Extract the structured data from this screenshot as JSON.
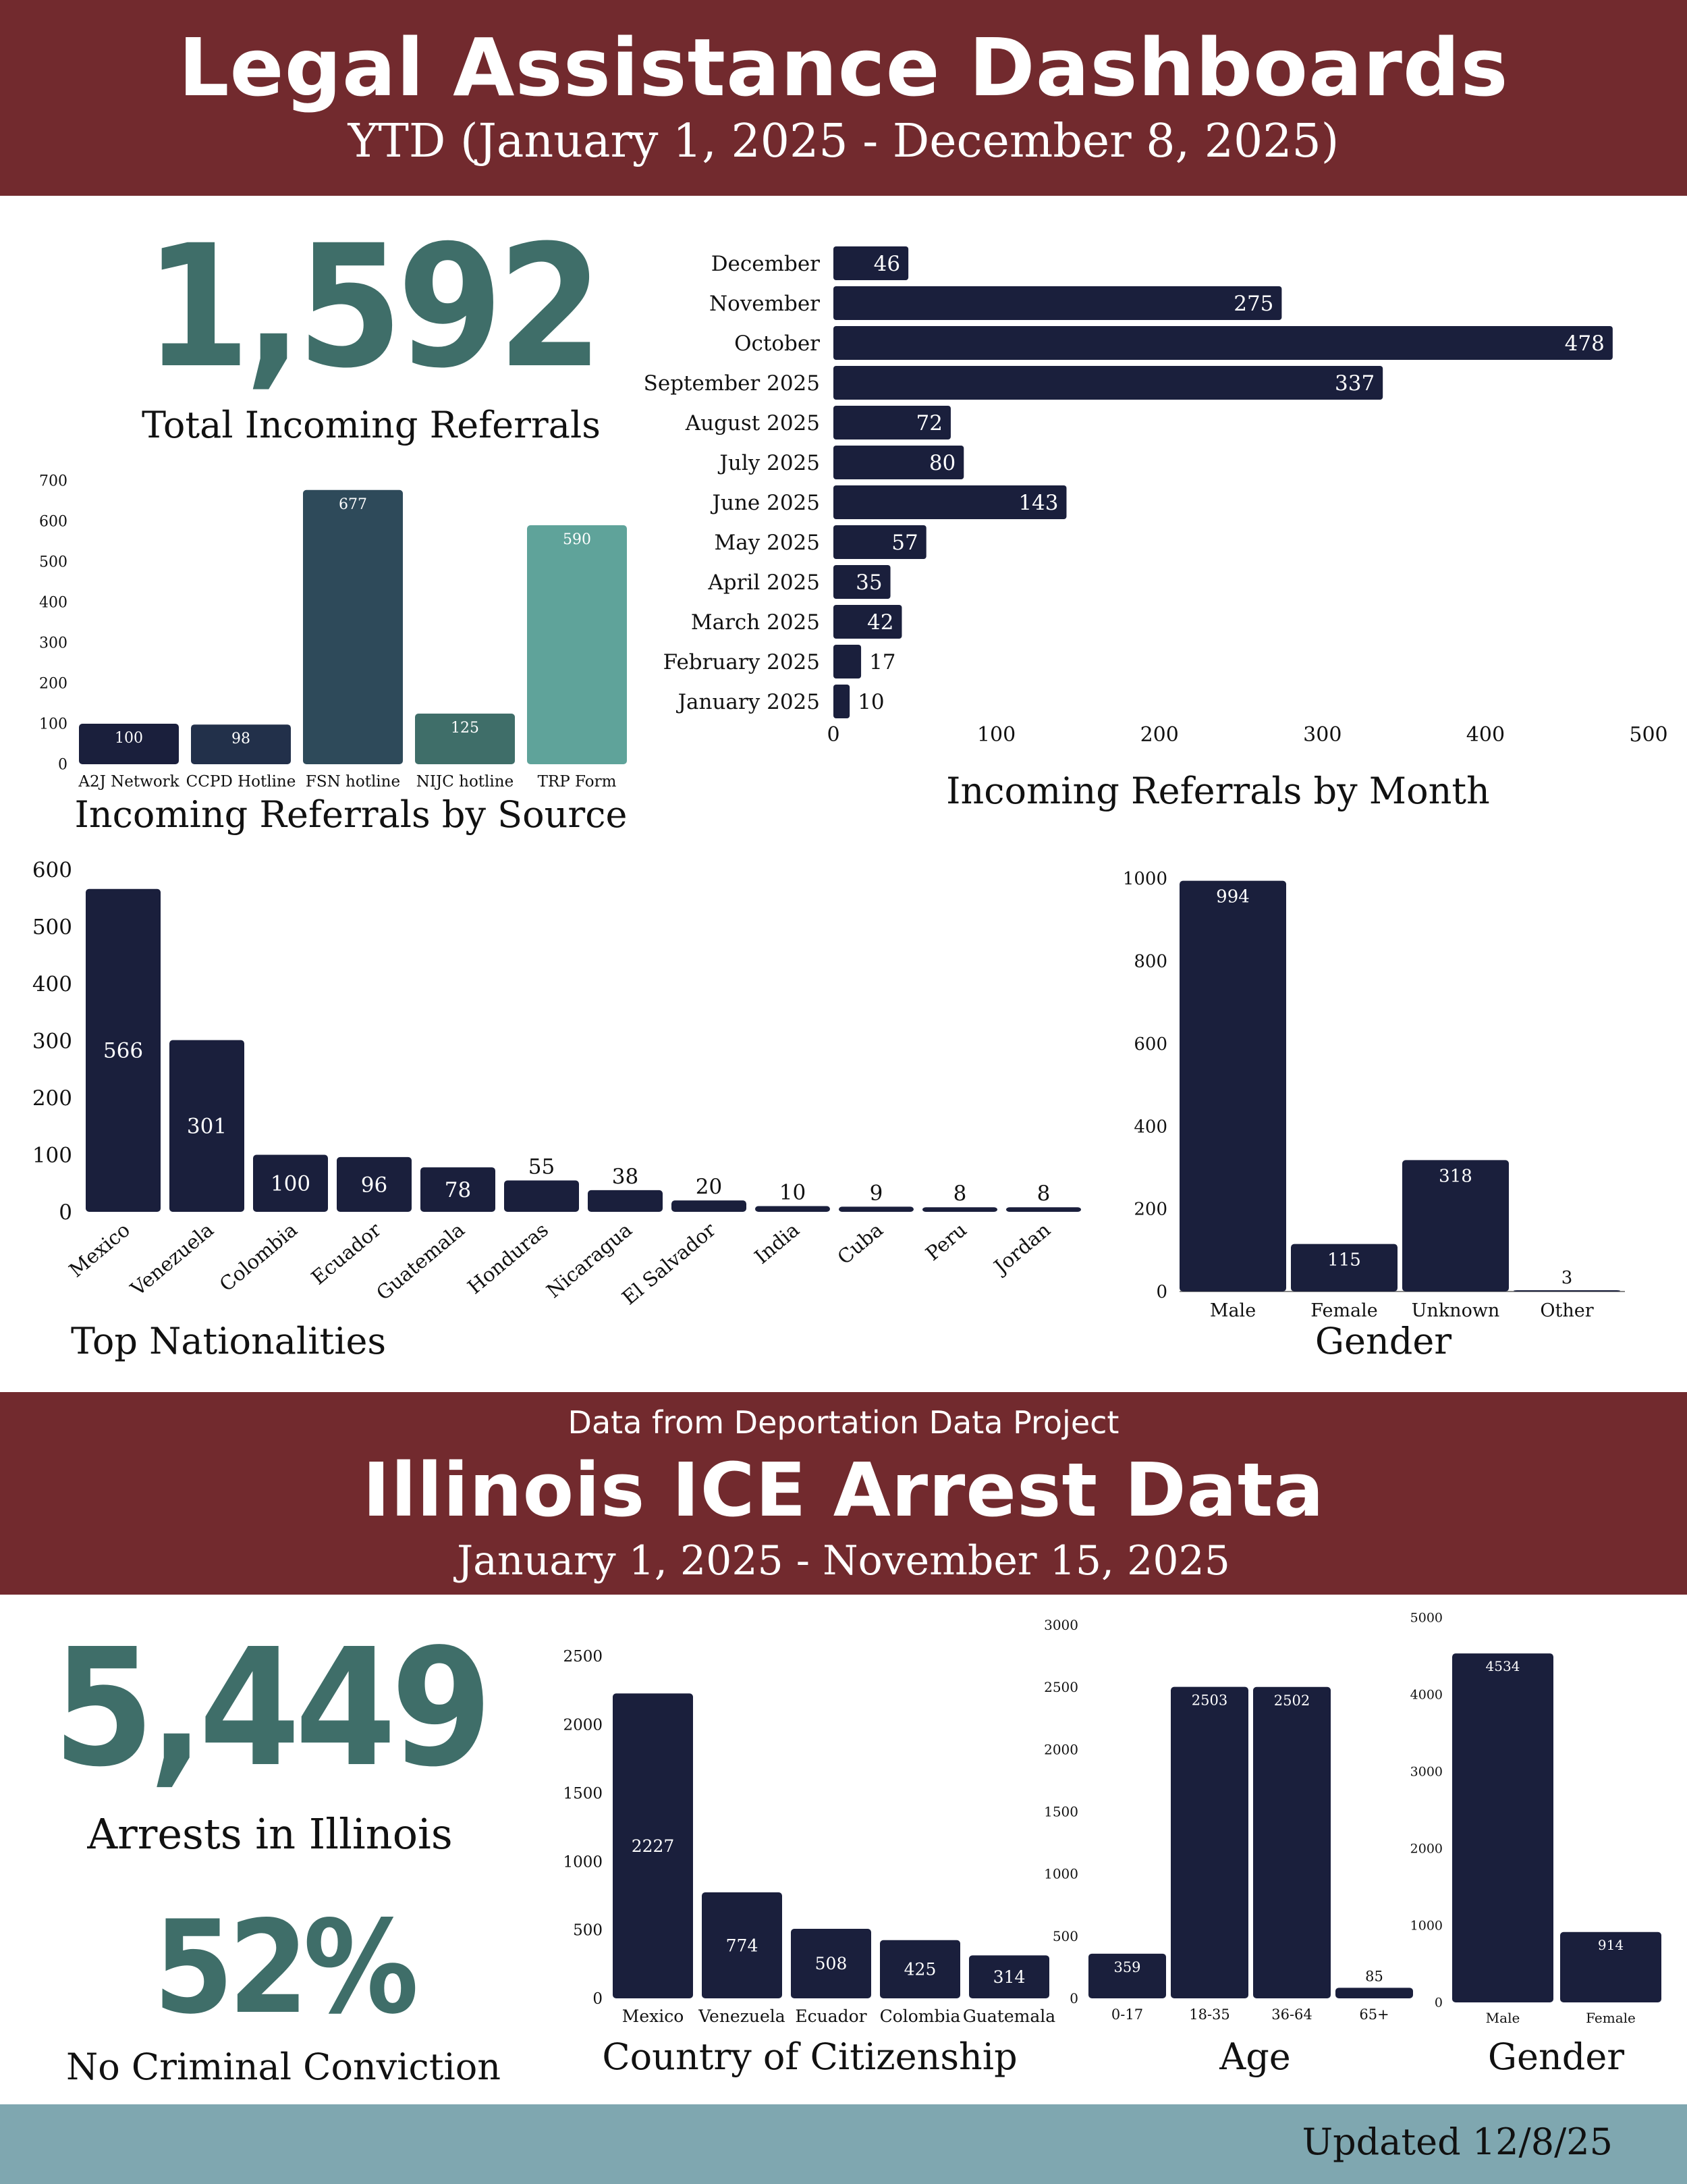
{
  "header": {
    "title": "Legal Assistance Dashboards",
    "subtitle": "YTD (January 1, 2025 - December 8, 2025)"
  },
  "referrals": {
    "total_value": "1,592",
    "total_label": "Total Incoming Referrals"
  },
  "section2": {
    "source_note": "Data from Deportation Data Project",
    "title": "Illinois ICE Arrest Data",
    "subtitle": "January 1, 2025 - November 15, 2025",
    "arrests_value": "5,449",
    "arrests_label": "Arrests in Illinois",
    "no_conviction_value": "52%",
    "no_conviction_label": "No Criminal Conviction"
  },
  "footer": {
    "updated": "Updated 12/8/25"
  },
  "colors": {
    "banner": "#722a2e",
    "navy": "#1a1f3c",
    "slate": "#2e4a5a",
    "teal_dark": "#3f6e69",
    "teal_light": "#5fa39a",
    "big_number": "#3f6e69",
    "footer": "#7fa7b0"
  },
  "chart_data": [
    {
      "id": "by-source",
      "type": "bar",
      "title": "Incoming Referrals by Source",
      "categories": [
        "A2J Network",
        "CCPD Hotline",
        "FSN hotline",
        "NIJC hotline",
        "TRP Form"
      ],
      "values": [
        100,
        98,
        677,
        125,
        590
      ],
      "colors": [
        "#1a1f3c",
        "#22304a",
        "#2e4a5a",
        "#3f6e69",
        "#5fa39a"
      ],
      "ylim": [
        0,
        700
      ],
      "yticks": [
        0,
        100,
        200,
        300,
        400,
        500,
        600,
        700
      ],
      "grid": false
    },
    {
      "id": "by-month",
      "type": "bar",
      "orientation": "horizontal",
      "title": "Incoming Referrals by Month",
      "categories": [
        "December",
        "November",
        "October",
        "September 2025",
        "August 2025",
        "July 2025",
        "June 2025",
        "May 2025",
        "April 2025",
        "March 2025",
        "February 2025",
        "January 2025"
      ],
      "values": [
        46,
        275,
        478,
        337,
        72,
        80,
        143,
        57,
        35,
        42,
        17,
        10
      ],
      "xlim": [
        0,
        500
      ],
      "xticks": [
        0,
        100,
        200,
        300,
        400,
        500
      ],
      "grid": false
    },
    {
      "id": "nationalities",
      "type": "bar",
      "title": "Top Nationalities",
      "categories": [
        "Mexico",
        "Venezuela",
        "Colombia",
        "Ecuador",
        "Guatemala",
        "Honduras",
        "Nicaragua",
        "El Salvador",
        "India",
        "Cuba",
        "Peru",
        "Jordan"
      ],
      "values": [
        566,
        301,
        100,
        96,
        78,
        55,
        38,
        20,
        10,
        9,
        8,
        8
      ],
      "ylim": [
        0,
        600
      ],
      "yticks": [
        0,
        100,
        200,
        300,
        400,
        500,
        600
      ],
      "grid": false
    },
    {
      "id": "gender-referrals",
      "type": "bar",
      "title": "Gender",
      "categories": [
        "Male",
        "Female",
        "Unknown",
        "Other"
      ],
      "values": [
        994,
        115,
        318,
        3
      ],
      "ylim": [
        0,
        1000
      ],
      "yticks": [
        0,
        200,
        400,
        600,
        800,
        1000
      ],
      "grid": false
    },
    {
      "id": "citizenship",
      "type": "bar",
      "title": "Country of Citizenship",
      "categories": [
        "Mexico",
        "Venezuela",
        "Ecuador",
        "Colombia",
        "Guatemala"
      ],
      "values": [
        2227,
        774,
        508,
        425,
        314
      ],
      "ylim": [
        0,
        2500
      ],
      "yticks": [
        0,
        500,
        1000,
        1500,
        2000,
        2500
      ],
      "grid": false
    },
    {
      "id": "age",
      "type": "bar",
      "title": "Age",
      "categories": [
        "0-17",
        "18-35",
        "36-64",
        "65+"
      ],
      "values": [
        359,
        2503,
        2502,
        85
      ],
      "ylim": [
        0,
        3000
      ],
      "yticks": [
        0,
        500,
        1000,
        1500,
        2000,
        2500,
        3000
      ],
      "grid": false
    },
    {
      "id": "gender-arrests",
      "type": "bar",
      "title": "Gender",
      "categories": [
        "Male",
        "Female"
      ],
      "values": [
        4534,
        914
      ],
      "ylim": [
        0,
        5000
      ],
      "yticks": [
        0,
        1000,
        2000,
        3000,
        4000,
        5000
      ],
      "grid": false
    }
  ]
}
